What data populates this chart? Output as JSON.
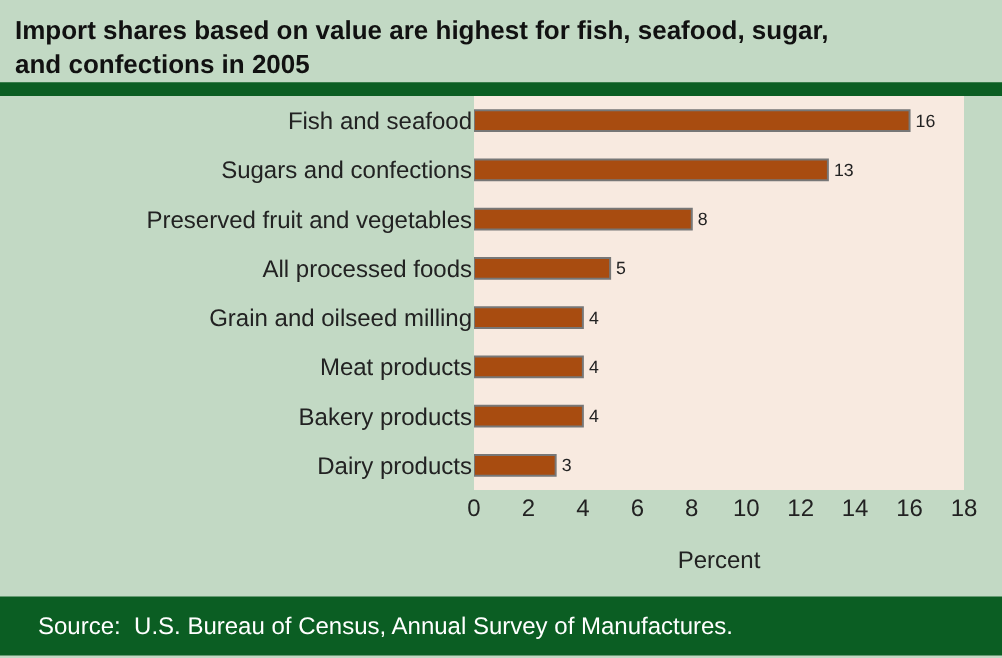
{
  "chart_data": {
    "type": "bar",
    "orientation": "horizontal",
    "title": "Import shares based on value are highest for fish, seafood, sugar, and confections in 2005",
    "categories": [
      "Fish and seafood",
      "Sugars and confections",
      "Preserved fruit and vegetables",
      "All processed foods",
      "Grain and oilseed milling",
      "Meat products",
      "Bakery products",
      "Dairy products"
    ],
    "values": [
      16,
      13,
      8,
      5,
      4,
      4,
      4,
      3
    ],
    "color": "#a84c10",
    "data_labels": true,
    "xlabel": "Percent",
    "xlim": [
      0,
      18
    ],
    "xticks": [
      0,
      2,
      4,
      6,
      8,
      10,
      12,
      14,
      16,
      18
    ],
    "grid": false,
    "legend": false,
    "annotations": [
      "Source:  U.S. Bureau of Census, Annual Survey of Manufactures."
    ]
  }
}
